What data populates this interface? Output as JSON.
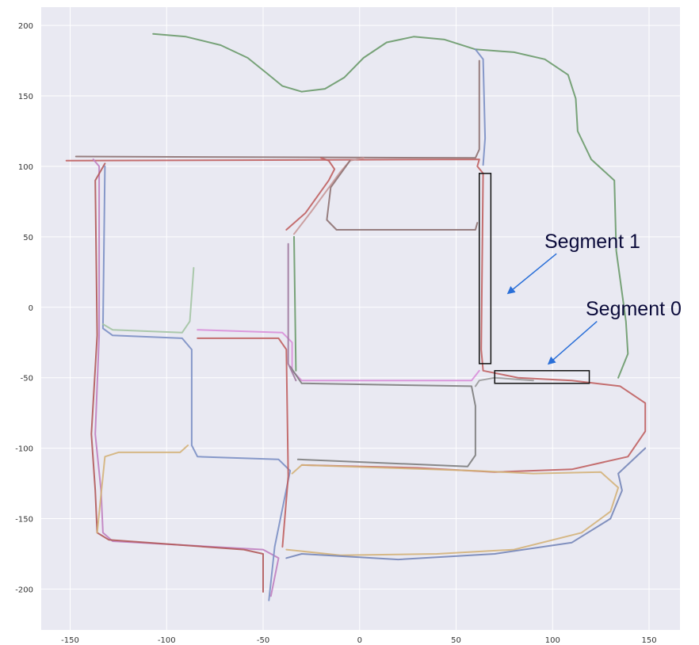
{
  "chart_data": {
    "type": "line",
    "title": "",
    "xlabel": "",
    "ylabel": "",
    "xlim": [
      -165,
      166
    ],
    "ylim": [
      -229,
      213
    ],
    "grid": true,
    "x_ticks": [
      -150,
      -100,
      -50,
      0,
      50,
      100,
      150
    ],
    "y_ticks": [
      -200,
      -150,
      -100,
      -50,
      0,
      50,
      100,
      150,
      200
    ],
    "series": [
      {
        "color": "#6a9a6a",
        "points": [
          [
            -107,
            194
          ],
          [
            -90,
            192
          ],
          [
            -72,
            186
          ],
          [
            -58,
            177
          ],
          [
            -48,
            166
          ],
          [
            -40,
            157
          ],
          [
            -30,
            153
          ],
          [
            -18,
            155
          ],
          [
            -8,
            163
          ],
          [
            2,
            177
          ],
          [
            14,
            188
          ],
          [
            28,
            192
          ],
          [
            44,
            190
          ],
          [
            60,
            183
          ],
          [
            80,
            181
          ],
          [
            96,
            176
          ],
          [
            108,
            165
          ],
          [
            112,
            148
          ],
          [
            113,
            125
          ],
          [
            120,
            105
          ],
          [
            132,
            90
          ],
          [
            133,
            40
          ],
          [
            138,
            -10
          ],
          [
            139,
            -33
          ],
          [
            134,
            -50
          ]
        ]
      },
      {
        "color": "#7b8fc4",
        "points": [
          [
            60,
            183
          ],
          [
            64,
            176
          ],
          [
            65,
            120
          ],
          [
            64,
            101
          ]
        ]
      },
      {
        "color": "#c06060",
        "points": [
          [
            -152,
            104
          ],
          [
            62,
            105
          ],
          [
            61,
            100
          ],
          [
            64,
            95
          ],
          [
            63,
            -30
          ],
          [
            64,
            -45
          ],
          [
            82,
            -50
          ],
          [
            110,
            -52
          ],
          [
            135,
            -56
          ],
          [
            148,
            -68
          ],
          [
            148,
            -88
          ],
          [
            139,
            -106
          ],
          [
            110,
            -115
          ],
          [
            70,
            -117
          ],
          [
            30,
            -114
          ],
          [
            -30,
            -112
          ]
        ]
      },
      {
        "color": "#8e7272",
        "points": [
          [
            -147,
            107
          ],
          [
            60,
            106
          ],
          [
            62,
            112
          ],
          [
            62,
            175
          ]
        ]
      },
      {
        "color": "#c080c0",
        "points": [
          [
            -138,
            105
          ],
          [
            -135,
            100
          ],
          [
            -135,
            -20
          ],
          [
            -137,
            -90
          ],
          [
            -134,
            -130
          ],
          [
            -133,
            -160
          ],
          [
            -128,
            -166
          ],
          [
            -50,
            -172
          ],
          [
            -42,
            -178
          ],
          [
            -46,
            -205
          ]
        ]
      },
      {
        "color": "#b15a5a",
        "points": [
          [
            -132,
            102
          ],
          [
            -137,
            90
          ],
          [
            -136,
            -20
          ],
          [
            -139,
            -90
          ],
          [
            -137,
            -130
          ],
          [
            -136,
            -160
          ],
          [
            -130,
            -165
          ],
          [
            -60,
            -172
          ],
          [
            -50,
            -175
          ],
          [
            -50,
            -202
          ]
        ]
      },
      {
        "color": "#7b8fc4",
        "points": [
          [
            -132,
            100
          ],
          [
            -133,
            -15
          ],
          [
            -128,
            -20
          ],
          [
            -92,
            -22
          ],
          [
            -87,
            -30
          ],
          [
            -87,
            -98
          ],
          [
            -84,
            -106
          ],
          [
            -42,
            -108
          ],
          [
            -36,
            -116
          ],
          [
            -44,
            -170
          ],
          [
            -47,
            -208
          ]
        ]
      },
      {
        "color": "#a3c4a3",
        "points": [
          [
            -133,
            -12
          ],
          [
            -128,
            -16
          ],
          [
            -92,
            -18
          ],
          [
            -88,
            -10
          ],
          [
            -86,
            28
          ]
        ]
      },
      {
        "color": "#d98fd9",
        "points": [
          [
            -84,
            -16
          ],
          [
            -40,
            -18
          ],
          [
            -35,
            -25
          ],
          [
            -35,
            -45
          ],
          [
            -30,
            -52
          ],
          [
            58,
            -52
          ],
          [
            62,
            -45
          ]
        ]
      },
      {
        "color": "#c06060",
        "points": [
          [
            -84,
            -22
          ],
          [
            -42,
            -22
          ],
          [
            -38,
            -30
          ],
          [
            -37,
            -120
          ],
          [
            -40,
            -170
          ]
        ]
      },
      {
        "color": "#7d7d7d",
        "points": [
          [
            -36,
            -42
          ],
          [
            -30,
            -54
          ],
          [
            58,
            -56
          ],
          [
            60,
            -70
          ],
          [
            60,
            -105
          ],
          [
            56,
            -113
          ],
          [
            -32,
            -108
          ]
        ]
      },
      {
        "color": "#9a9a9a",
        "points": [
          [
            60,
            -56
          ],
          [
            62,
            -52
          ],
          [
            70,
            -50
          ],
          [
            90,
            -52
          ]
        ]
      },
      {
        "color": "#d4b27a",
        "points": [
          [
            -136,
            -160
          ],
          [
            -132,
            -106
          ],
          [
            -125,
            -103
          ],
          [
            -93,
            -103
          ],
          [
            -89,
            -98
          ]
        ]
      },
      {
        "color": "#d4b27a",
        "points": [
          [
            -35,
            -118
          ],
          [
            -30,
            -112
          ],
          [
            60,
            -116
          ],
          [
            90,
            -118
          ],
          [
            125,
            -117
          ],
          [
            134,
            -128
          ],
          [
            130,
            -145
          ],
          [
            115,
            -160
          ],
          [
            80,
            -172
          ],
          [
            40,
            -175
          ],
          [
            -10,
            -176
          ],
          [
            -38,
            -172
          ]
        ]
      },
      {
        "color": "#7686b8",
        "points": [
          [
            -38,
            -178
          ],
          [
            -30,
            -175
          ],
          [
            20,
            -179
          ],
          [
            70,
            -175
          ],
          [
            110,
            -167
          ],
          [
            130,
            -150
          ],
          [
            136,
            -130
          ],
          [
            134,
            -118
          ],
          [
            148,
            -100
          ]
        ]
      },
      {
        "color": "#c06060",
        "points": [
          [
            -38,
            55
          ],
          [
            -28,
            67
          ],
          [
            -16,
            90
          ],
          [
            -13,
            98
          ],
          [
            -16,
            104
          ],
          [
            -20,
            106
          ]
        ]
      },
      {
        "color": "#c89898",
        "points": [
          [
            -34,
            52
          ],
          [
            -25,
            68
          ],
          [
            -10,
            96
          ],
          [
            -5,
            104
          ],
          [
            2,
            106
          ]
        ]
      },
      {
        "color": "#8e7272",
        "points": [
          [
            -5,
            104
          ],
          [
            -15,
            85
          ],
          [
            -17,
            62
          ],
          [
            -12,
            55
          ],
          [
            60,
            55
          ],
          [
            61,
            60
          ]
        ]
      },
      {
        "color": "#a07aa0",
        "points": [
          [
            -37,
            45
          ],
          [
            -37,
            -40
          ],
          [
            -33,
            -52
          ]
        ]
      },
      {
        "color": "#6a9a6a",
        "points": [
          [
            -34,
            50
          ],
          [
            -33,
            -45
          ]
        ]
      }
    ],
    "annotations": [
      {
        "text": "Segment 1",
        "box": {
          "x0": 62,
          "x1": 68,
          "y0": -40,
          "y1": 95
        },
        "arrow_from": [
          102,
          38
        ],
        "arrow_to": [
          77,
          10
        ]
      },
      {
        "text": "Segment 0",
        "box": {
          "x0": 70,
          "x1": 119,
          "y0": -54,
          "y1": -45
        },
        "arrow_from": [
          123,
          -10
        ],
        "arrow_to": [
          98,
          -40
        ]
      }
    ]
  },
  "styles": {
    "plot_bg": "#e9e9f2",
    "grid_color": "#ffffff",
    "box_color": "#111111",
    "arrow_color": "#2a6fd8"
  }
}
